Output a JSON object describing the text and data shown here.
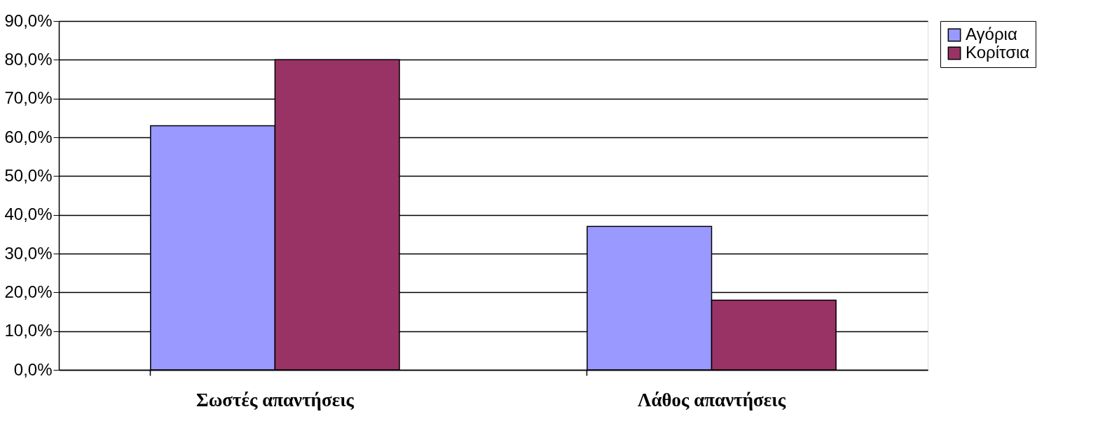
{
  "chart_data": {
    "type": "bar",
    "categories": [
      "Σωστές απαντήσεις",
      "Λάθος απαντήσεις"
    ],
    "series": [
      {
        "name": "Αγόρια",
        "color": "#9999ff",
        "values": [
          63,
          37
        ]
      },
      {
        "name": "Κορίτσια",
        "color": "#993366",
        "values": [
          80,
          18
        ]
      }
    ],
    "ylim": [
      0,
      90
    ],
    "yticks": [
      {
        "value": 0,
        "label": "0,0%"
      },
      {
        "value": 10,
        "label": "10,0%"
      },
      {
        "value": 20,
        "label": "20,0%"
      },
      {
        "value": 30,
        "label": "30,0%"
      },
      {
        "value": 40,
        "label": "40,0%"
      },
      {
        "value": 50,
        "label": "50,0%"
      },
      {
        "value": 60,
        "label": "60,0%"
      },
      {
        "value": 70,
        "label": "70,0%"
      },
      {
        "value": 80,
        "label": "80,0%"
      },
      {
        "value": 90,
        "label": "90,0%"
      }
    ],
    "grid": "y",
    "legend": "right"
  }
}
